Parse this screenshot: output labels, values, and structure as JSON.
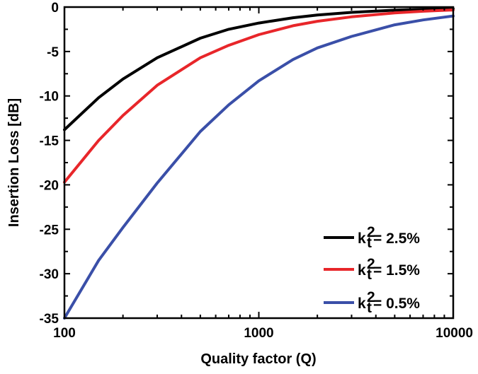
{
  "chart_data": {
    "type": "line",
    "xlabel": "Quality factor (Q)",
    "ylabel": "Insertion Loss [dB]",
    "xscale": "log",
    "xlim": [
      100,
      10000
    ],
    "ylim": [
      -35,
      0
    ],
    "xticks": [
      100,
      1000,
      10000
    ],
    "xtick_labels": [
      "100",
      "1000",
      "10000"
    ],
    "yticks": [
      0,
      -5,
      -10,
      -15,
      -20,
      -25,
      -30,
      -35
    ],
    "ytick_labels": [
      "0",
      "-5",
      "-10",
      "-15",
      "-20",
      "-25",
      "-30",
      "-35"
    ],
    "grid": false,
    "legend_position": "bottom-right",
    "series": [
      {
        "name_base": "k",
        "name_sub": "t",
        "name_sup": "2",
        "name_tail": " = 2.5%",
        "color": "#000000",
        "x": [
          100,
          150,
          200,
          300,
          500,
          700,
          1000,
          1500,
          2000,
          3000,
          5000,
          7000,
          10000
        ],
        "y": [
          -13.8,
          -10.2,
          -8.1,
          -5.7,
          -3.5,
          -2.5,
          -1.8,
          -1.2,
          -0.9,
          -0.6,
          -0.35,
          -0.25,
          -0.18
        ]
      },
      {
        "name_base": "k",
        "name_sub": "t",
        "name_sup": "2",
        "name_tail": " = 1.5%",
        "color": "#e8262a",
        "x": [
          100,
          150,
          200,
          300,
          500,
          700,
          1000,
          1500,
          2000,
          3000,
          5000,
          7000,
          10000
        ],
        "y": [
          -19.7,
          -15.0,
          -12.2,
          -8.8,
          -5.7,
          -4.3,
          -3.1,
          -2.1,
          -1.6,
          -1.1,
          -0.65,
          -0.47,
          -0.33
        ]
      },
      {
        "name_base": "k",
        "name_sub": "t",
        "name_sup": "2",
        "name_tail": " = 0.5%",
        "color": "#3a4fa8",
        "x": [
          100,
          150,
          200,
          300,
          500,
          700,
          1000,
          1500,
          2000,
          3000,
          5000,
          7000,
          10000
        ],
        "y": [
          -35.0,
          -28.5,
          -24.8,
          -19.8,
          -14.0,
          -11.0,
          -8.3,
          -5.9,
          -4.6,
          -3.3,
          -2.0,
          -1.45,
          -1.0
        ]
      }
    ]
  }
}
